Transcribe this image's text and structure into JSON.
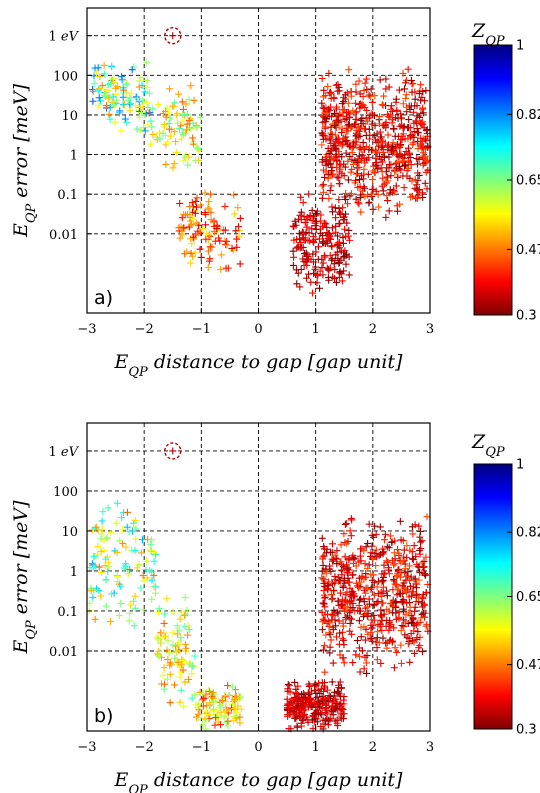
{
  "chart_data": [
    {
      "type": "scatter",
      "panel_label": "a)",
      "xlabel": "E_QP distance to gap [gap unit]",
      "ylabel": "E_QP error [meV]",
      "colorbar_label": "Z_QP",
      "xlim": [
        -3,
        3
      ],
      "ylim_log_meV": [
        0.0001,
        5000
      ],
      "x_ticks": [
        -3,
        -2,
        -1,
        0,
        1,
        2,
        3
      ],
      "y_ticks": [
        {
          "value": 0.01,
          "label": "0.01"
        },
        {
          "value": 0.1,
          "label": "0.1"
        },
        {
          "value": 1,
          "label": "1"
        },
        {
          "value": 10,
          "label": "10"
        },
        {
          "value": 100,
          "label": "100"
        },
        {
          "value": 1000,
          "label": "1 eV"
        }
      ],
      "colorbar": {
        "min": 0.3,
        "max": 1,
        "ticks": [
          0.3,
          0.47,
          0.65,
          0.82,
          1
        ]
      },
      "grid": true,
      "highlight_circle": {
        "x": -1.5,
        "y": 1000
      },
      "clusters": [
        {
          "x_range": [
            -3,
            -1.9
          ],
          "log10y_range": [
            0.3,
            2.6
          ],
          "z_range": [
            0.45,
            0.85
          ],
          "count": 110
        },
        {
          "x_range": [
            -1.9,
            -1.0
          ],
          "log10y_range": [
            -0.5,
            1.8
          ],
          "z_range": [
            0.6,
            0.85
          ],
          "count": 80
        },
        {
          "x_range": [
            -1.4,
            -0.3
          ],
          "log10y_range": [
            -3.0,
            -0.8
          ],
          "z_range": [
            0.75,
            0.95
          ],
          "count": 110
        },
        {
          "x_range": [
            0.6,
            1.6
          ],
          "log10y_range": [
            -3.6,
            -0.8
          ],
          "z_range": [
            0.9,
            1.0
          ],
          "count": 200
        },
        {
          "x_range": [
            1.1,
            3.0
          ],
          "log10y_range": [
            -1.6,
            2.2
          ],
          "z_range": [
            0.85,
            1.0
          ],
          "count": 650
        }
      ]
    },
    {
      "type": "scatter",
      "panel_label": "b)",
      "xlabel": "E_QP distance to gap [gap unit]",
      "ylabel": "E_QP error [meV]",
      "colorbar_label": "Z_QP",
      "xlim": [
        -3,
        3
      ],
      "ylim_log_meV": [
        0.0001,
        5000
      ],
      "x_ticks": [
        -3,
        -2,
        -1,
        0,
        1,
        2,
        3
      ],
      "y_ticks": [
        {
          "value": 0.01,
          "label": "0.01"
        },
        {
          "value": 0.1,
          "label": "0.1"
        },
        {
          "value": 1,
          "label": "1"
        },
        {
          "value": 10,
          "label": "10"
        },
        {
          "value": 100,
          "label": "100"
        },
        {
          "value": 1000,
          "label": "1 eV"
        }
      ],
      "colorbar": {
        "min": 0.3,
        "max": 1,
        "ticks": [
          0.3,
          0.47,
          0.65,
          0.82,
          1
        ]
      },
      "grid": true,
      "highlight_circle": {
        "x": -1.5,
        "y": 1000
      },
      "clusters": [
        {
          "x_range": [
            -3,
            -1.8
          ],
          "log10y_range": [
            -1.6,
            1.9
          ],
          "z_range": [
            0.5,
            0.85
          ],
          "count": 120
        },
        {
          "x_range": [
            -1.8,
            -1.1
          ],
          "log10y_range": [
            -3.5,
            -0.5
          ],
          "z_range": [
            0.6,
            0.85
          ],
          "count": 90
        },
        {
          "x_range": [
            -1.1,
            -0.3
          ],
          "log10y_range": [
            -4.0,
            -2.8
          ],
          "z_range": [
            0.65,
            0.9
          ],
          "count": 100
        },
        {
          "x_range": [
            0.5,
            1.5
          ],
          "log10y_range": [
            -4.0,
            -2.7
          ],
          "z_range": [
            0.9,
            1.0
          ],
          "count": 250
        },
        {
          "x_range": [
            1.1,
            3.0
          ],
          "log10y_range": [
            -2.6,
            1.4
          ],
          "z_range": [
            0.85,
            1.0
          ],
          "count": 600
        }
      ]
    }
  ]
}
